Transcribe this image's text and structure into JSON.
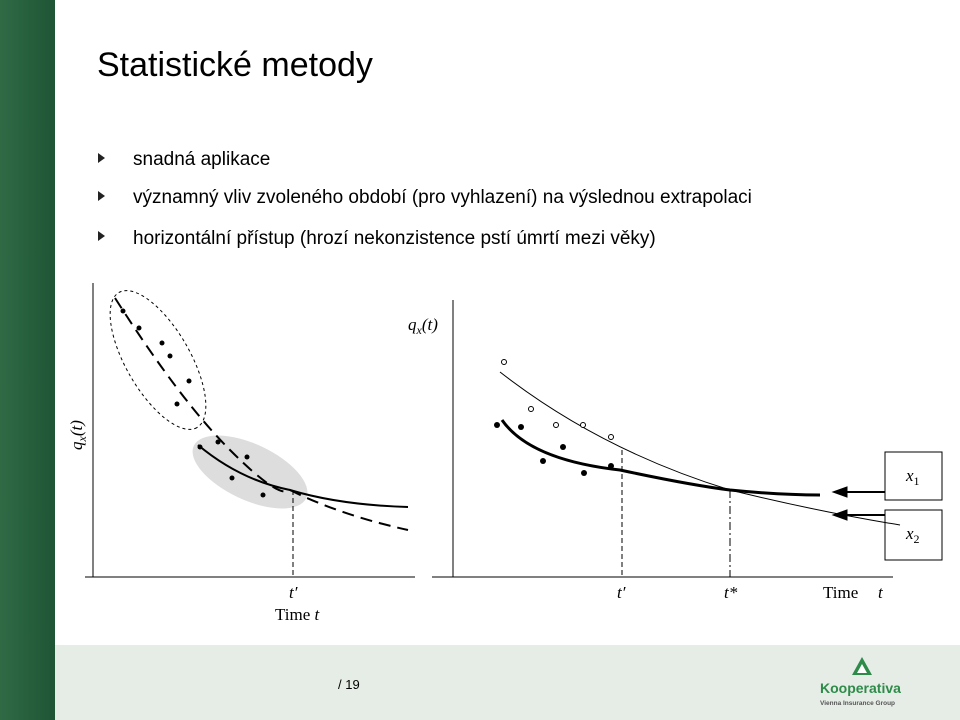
{
  "slide": {
    "title": "Statistické metody",
    "bullets": [
      "snadná aplikace",
      "významný vliv zvoleného období (pro vyhlazení) na výslednou extrapolaci",
      "horizontální přístup (hrozí nekonzistence pstí úmrtí mezi věky)"
    ],
    "figure_left": {
      "y_label": {
        "base": "q",
        "sub": "x",
        "arg": "(t)"
      },
      "t_prime": "t′",
      "x_label": {
        "text": "Time",
        "var": "t"
      }
    },
    "figure_right": {
      "y_label": {
        "base": "q",
        "sub": "x",
        "arg": "(t)"
      },
      "t_prime": "t′",
      "t_star": "t*",
      "x_label": {
        "text": "Time",
        "var": "t"
      },
      "boxes": [
        {
          "base": "x",
          "sub": "1"
        },
        {
          "base": "x",
          "sub": "2"
        }
      ]
    },
    "footer": {
      "page": "/ 19",
      "logo": "Kooperativa",
      "logo_sub": "Vienna Insurance Group"
    }
  }
}
